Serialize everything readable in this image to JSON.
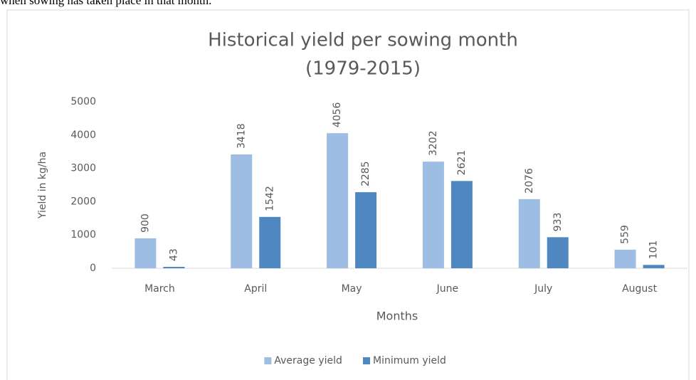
{
  "caption": "when sowing has taken place in that month.",
  "chart_data": {
    "type": "bar",
    "title": "Historical yield per sowing month",
    "subtitle": "(1979-2015)",
    "x_label": "Months",
    "y_label": "Yield in kg/ha",
    "categories": [
      "March",
      "April",
      "May",
      "June",
      "July",
      "August"
    ],
    "series": [
      {
        "name": "Average yield",
        "color": "#9dbde3",
        "values": [
          900,
          3418,
          4056,
          3202,
          2076,
          559
        ]
      },
      {
        "name": "Minimum yield",
        "color": "#4f88c0",
        "values": [
          43,
          1542,
          2285,
          2621,
          933,
          101
        ]
      }
    ],
    "ylim": [
      0,
      5000
    ],
    "yticks": [
      0,
      1000,
      2000,
      3000,
      4000,
      5000
    ],
    "grid": false,
    "legend": "bottom",
    "data_labels": true
  }
}
